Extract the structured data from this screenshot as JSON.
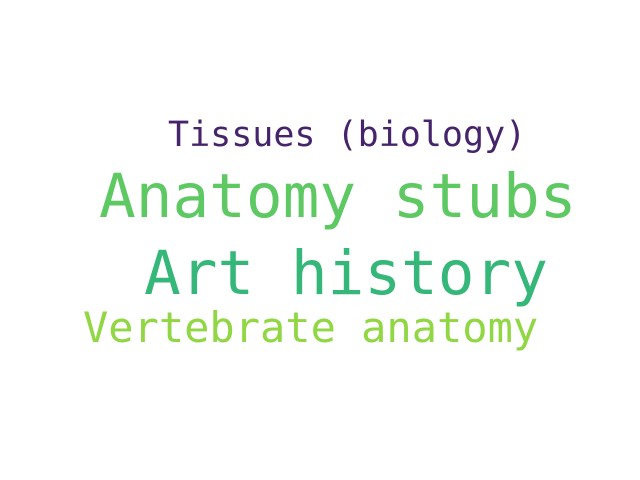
{
  "words": [
    {
      "text": "Tissues (biology)",
      "color": "#46246b"
    },
    {
      "text": "Anatomy stubs",
      "color": "#5ec962"
    },
    {
      "text": "Art history",
      "color": "#35b779"
    },
    {
      "text": "Vertebrate anatomy",
      "color": "#90d743"
    }
  ]
}
